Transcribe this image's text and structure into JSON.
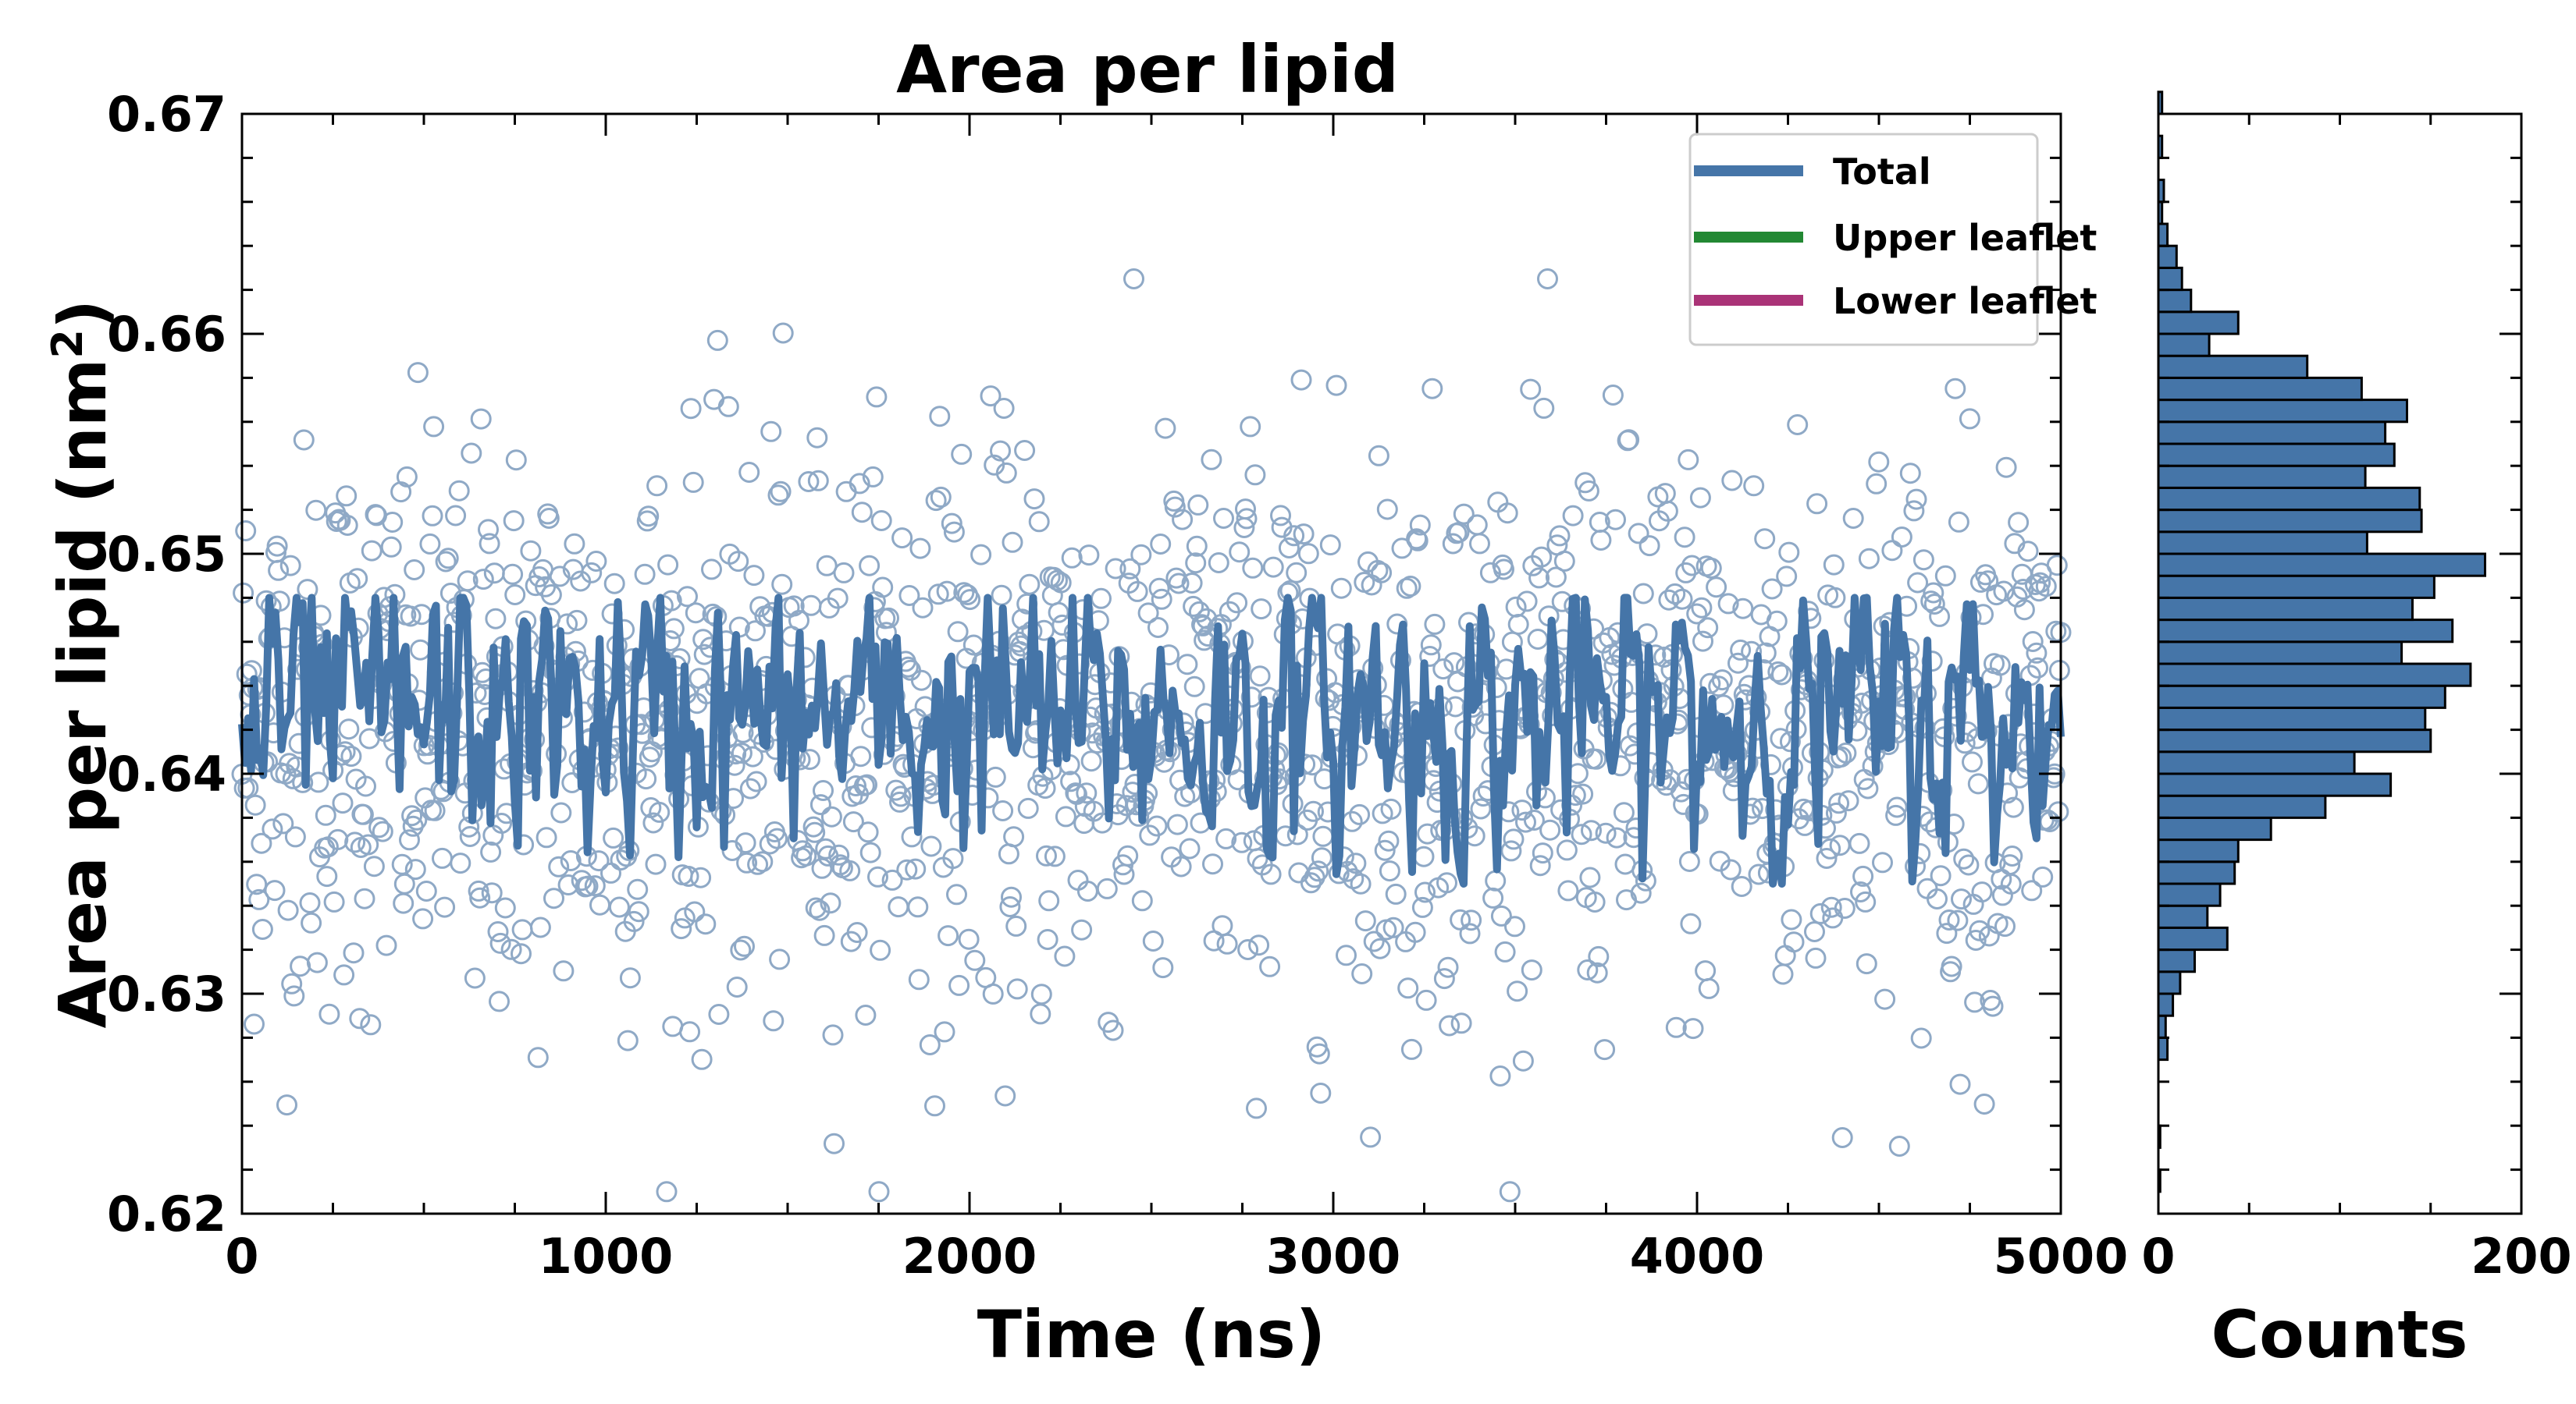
{
  "chart_data": [
    {
      "type": "line+scatter",
      "title": "Area per lipid",
      "xlabel": "Time (ns)",
      "ylabel": "Area per lipid (nm",
      "ylabel_superscript": "2",
      "ylabel_suffix": ")",
      "xlim": [
        0,
        5000
      ],
      "ylim": [
        0.62,
        0.67
      ],
      "x_ticks": [
        "0",
        "1000",
        "2000",
        "3000",
        "4000",
        "5000"
      ],
      "y_ticks": [
        "0.62",
        "0.63",
        "0.64",
        "0.65",
        "0.66",
        "0.67"
      ],
      "grid": false,
      "legend": {
        "placement": "top-right",
        "entries": [
          {
            "name": "Total",
            "color": "#4575a8"
          },
          {
            "name": "Upper leaflet",
            "color": "#228833"
          },
          {
            "name": "Lower leaflet",
            "color": "#aa3377"
          }
        ]
      },
      "series": [
        {
          "name": "Total",
          "color": "#4575a8",
          "style": "line",
          "mean": 0.6425,
          "range": [
            0.635,
            0.648
          ]
        }
      ],
      "scatter": {
        "color": "#8fa9c6",
        "mean": 0.642,
        "std": 0.0065,
        "x_range": [
          0,
          5000
        ],
        "y_range": [
          0.621,
          0.6625
        ]
      }
    },
    {
      "type": "bar",
      "orientation": "horizontal",
      "xlabel": "Counts",
      "xlim": [
        0,
        200
      ],
      "x_ticks": [
        "0",
        "200"
      ],
      "ylim": [
        0.62,
        0.67
      ],
      "bin_width": 0.001,
      "bins_start": 0.621,
      "counts": [
        1,
        0,
        1,
        0,
        0,
        0,
        5,
        4,
        8,
        12,
        20,
        38,
        27,
        34,
        42,
        44,
        62,
        92,
        128,
        108,
        150,
        147,
        158,
        172,
        134,
        162,
        140,
        152,
        180,
        115,
        145,
        144,
        114,
        130,
        125,
        137,
        112,
        82,
        28,
        44,
        18,
        13,
        10,
        5,
        2,
        3,
        0,
        2,
        0,
        2
      ],
      "bar_color": "#4575a8"
    }
  ]
}
